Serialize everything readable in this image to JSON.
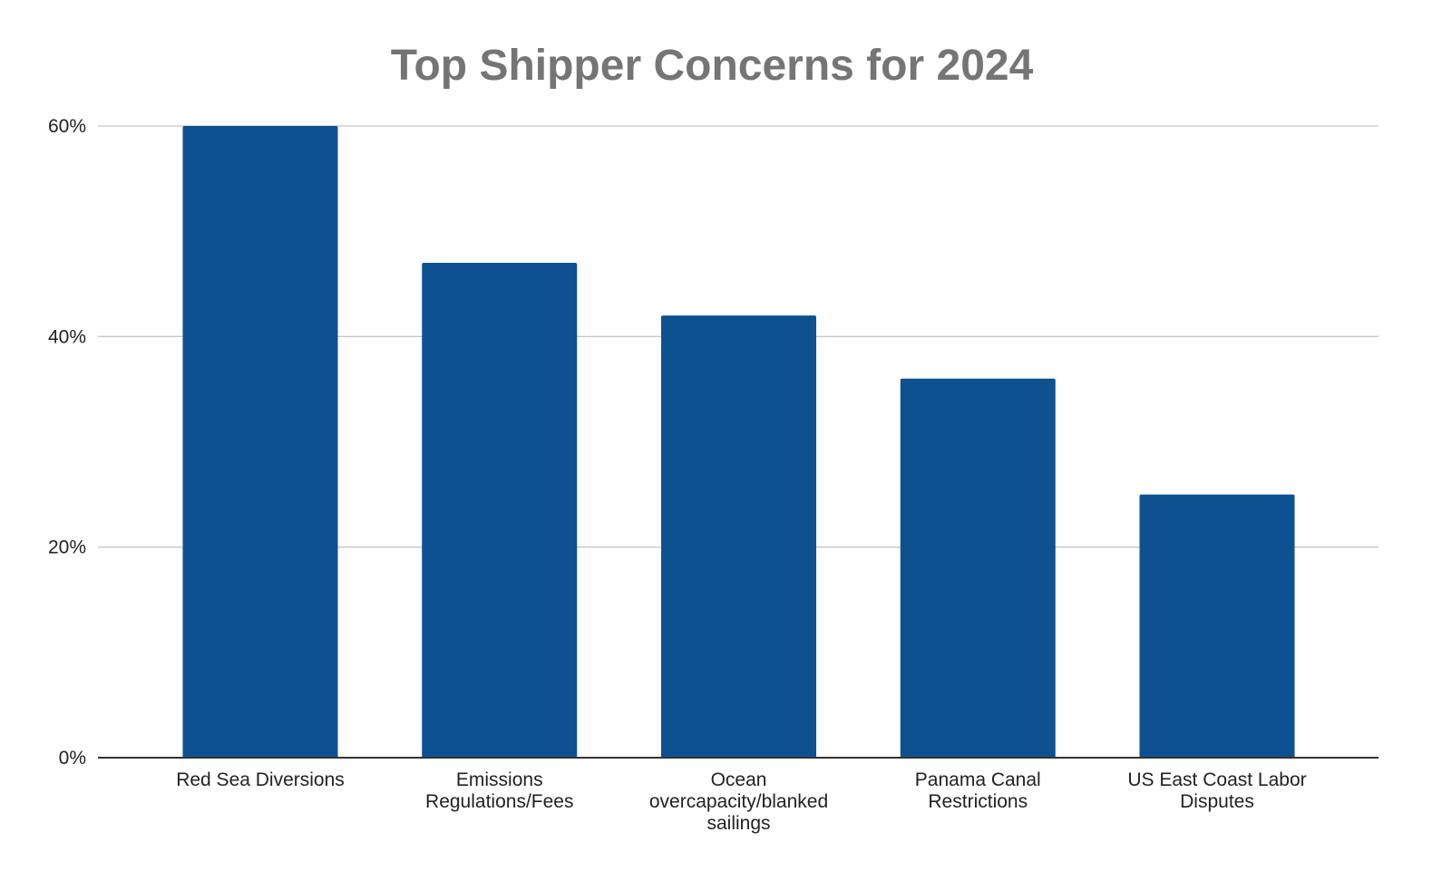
{
  "chart_data": {
    "type": "bar",
    "title": "Top Shipper Concerns for 2024",
    "categories": [
      [
        "Red Sea Diversions"
      ],
      [
        "Emissions",
        "Regulations/Fees"
      ],
      [
        "Ocean",
        "overcapacity/blanked",
        "sailings"
      ],
      [
        "Panama Canal",
        "Restrictions"
      ],
      [
        "US East Coast Labor",
        "Disputes"
      ]
    ],
    "values": [
      0.6,
      0.47,
      0.42,
      0.36,
      0.25
    ],
    "y_ticks": [
      {
        "value": 0,
        "label": "0%"
      },
      {
        "value": 0.2,
        "label": "20%"
      },
      {
        "value": 0.4,
        "label": "40%"
      },
      {
        "value": 0.6,
        "label": "60%"
      }
    ],
    "ylim": [
      0,
      0.6
    ],
    "xlabel": "",
    "ylabel": "",
    "grid": true,
    "legend": "none",
    "colors": {
      "bar": "#0e5191",
      "grid": "#c6c6c6",
      "baseline": "#333333",
      "title": "#757575",
      "text": "#222222"
    }
  }
}
